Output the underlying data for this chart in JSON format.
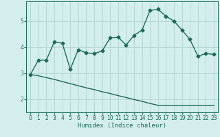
{
  "xlabel": "Humidex (Indice chaleur)",
  "background_color": "#d4eeee",
  "grid_color": "#aacccc",
  "line_color": "#1a6b5a",
  "xlim": [
    -0.5,
    23.5
  ],
  "ylim": [
    1.5,
    5.75
  ],
  "yticks": [
    2,
    3,
    4,
    5
  ],
  "xticks": [
    0,
    1,
    2,
    3,
    4,
    5,
    6,
    7,
    8,
    9,
    10,
    11,
    12,
    13,
    14,
    15,
    16,
    17,
    18,
    19,
    20,
    21,
    22,
    23
  ],
  "series1_x": [
    0,
    1,
    2,
    3,
    4,
    5,
    6,
    7,
    8,
    9,
    10,
    11,
    12,
    13,
    14,
    15,
    16,
    17,
    18,
    19,
    20,
    21,
    22,
    23
  ],
  "series1_y": [
    2.95,
    3.5,
    3.5,
    4.2,
    4.15,
    3.15,
    3.9,
    3.78,
    3.75,
    3.85,
    4.35,
    4.38,
    4.08,
    4.45,
    4.65,
    5.4,
    5.45,
    5.18,
    5.0,
    4.65,
    4.3,
    3.65,
    3.75,
    3.72
  ],
  "series2_x": [
    0,
    1,
    2,
    3,
    4,
    5,
    6,
    7,
    8,
    9,
    10,
    11,
    12,
    13,
    14,
    15,
    16,
    17,
    18,
    19,
    20,
    21,
    22,
    23
  ],
  "series2_y": [
    2.95,
    2.9,
    2.83,
    2.76,
    2.68,
    2.6,
    2.52,
    2.44,
    2.37,
    2.29,
    2.22,
    2.14,
    2.07,
    1.99,
    1.92,
    1.84,
    1.77,
    1.77,
    1.77,
    1.77,
    1.77,
    1.77,
    1.77,
    1.77
  ],
  "marker_size": 2.5,
  "line_width": 1.0
}
